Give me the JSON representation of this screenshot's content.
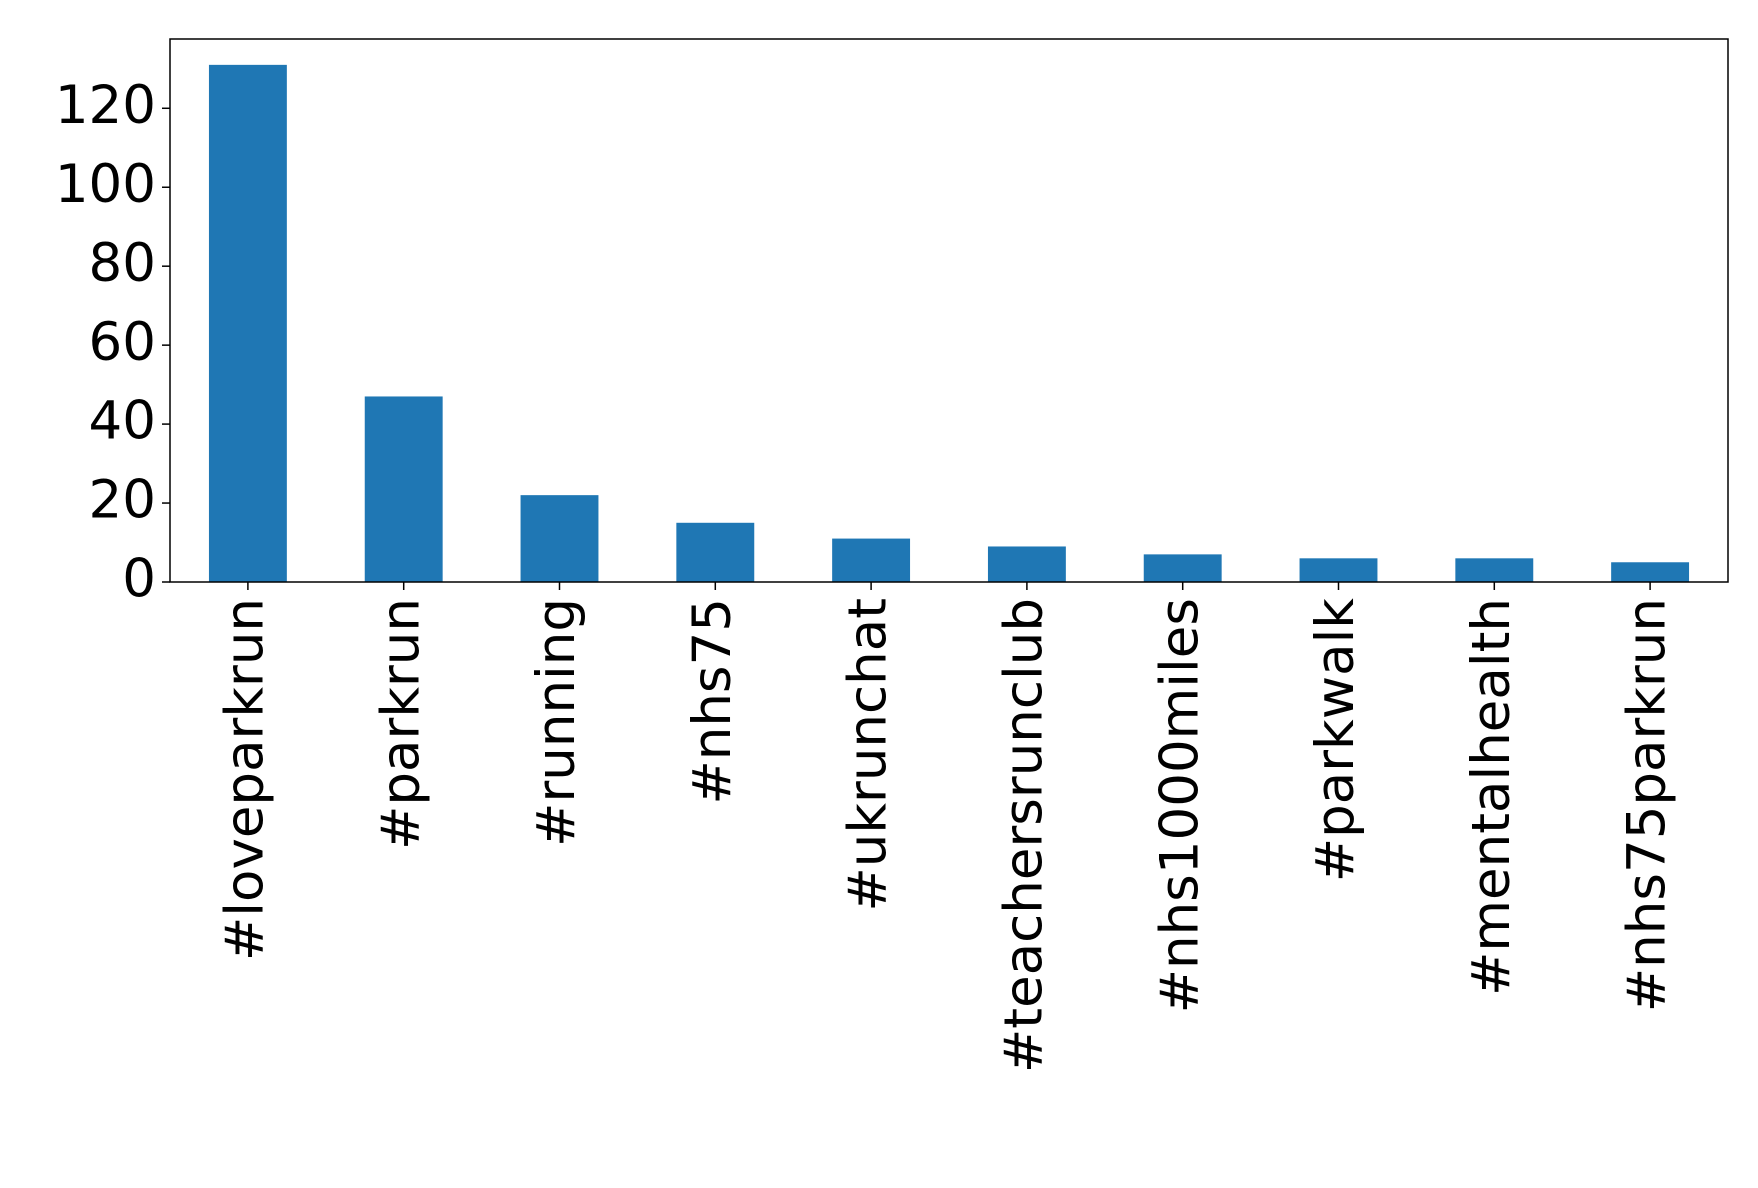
{
  "chart_data": {
    "type": "bar",
    "categories": [
      "#loveparkrun",
      "#parkrun",
      "#running",
      "#nhs75",
      "#ukrunchat",
      "#teachersrunclub",
      "#nhs1000miles",
      "#parkwalk",
      "#mentalhealth",
      "#nhs75parkrun"
    ],
    "values": [
      131,
      47,
      22,
      15,
      11,
      9,
      7,
      6,
      6,
      5
    ],
    "color": "#1f77b4",
    "ylim": [
      0,
      137.55
    ],
    "yticks": [
      0,
      20,
      40,
      60,
      80,
      100,
      120
    ],
    "grid": false
  }
}
